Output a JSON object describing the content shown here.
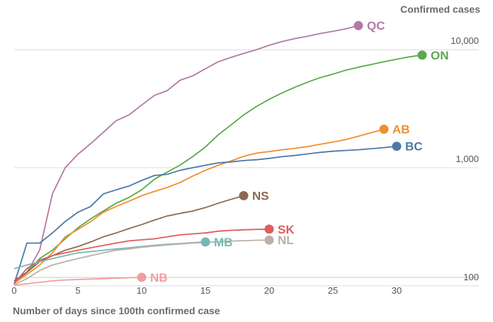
{
  "chart_data": {
    "type": "line",
    "title": "",
    "ylabel": "Confirmed cases",
    "xlabel": "Number of days since 100th confirmed case",
    "y_scale": "log",
    "xlim": [
      0,
      33
    ],
    "ylim": [
      80,
      20000
    ],
    "x_ticks": [
      0,
      5,
      10,
      15,
      20,
      25,
      30
    ],
    "y_ticks": [
      {
        "value": 100,
        "label": "100"
      },
      {
        "value": 1000,
        "label": "1,000"
      },
      {
        "value": 10000,
        "label": "10,000"
      }
    ],
    "grid": "horizontal",
    "series": [
      {
        "name": "QC",
        "color": "#b07aa9",
        "values": [
          [
            0,
            105
          ],
          [
            1,
            130
          ],
          [
            2,
            200
          ],
          [
            3,
            600
          ],
          [
            4,
            1000
          ],
          [
            5,
            1300
          ],
          [
            6,
            1600
          ],
          [
            7,
            2000
          ],
          [
            8,
            2500
          ],
          [
            9,
            2800
          ],
          [
            10,
            3400
          ],
          [
            11,
            4100
          ],
          [
            12,
            4500
          ],
          [
            13,
            5500
          ],
          [
            14,
            6000
          ],
          [
            15,
            6900
          ],
          [
            16,
            7900
          ],
          [
            17,
            8600
          ],
          [
            18,
            9300
          ],
          [
            19,
            10000
          ],
          [
            20,
            10900
          ],
          [
            21,
            11700
          ],
          [
            22,
            12400
          ],
          [
            23,
            13000
          ],
          [
            24,
            13700
          ],
          [
            25,
            14300
          ],
          [
            26,
            15000
          ],
          [
            27,
            16000
          ]
        ]
      },
      {
        "name": "ON",
        "color": "#5aaa4b",
        "values": [
          [
            0,
            110
          ],
          [
            1,
            130
          ],
          [
            2,
            170
          ],
          [
            3,
            200
          ],
          [
            4,
            250
          ],
          [
            5,
            310
          ],
          [
            6,
            370
          ],
          [
            7,
            430
          ],
          [
            8,
            500
          ],
          [
            9,
            560
          ],
          [
            10,
            650
          ],
          [
            11,
            800
          ],
          [
            12,
            920
          ],
          [
            13,
            1050
          ],
          [
            14,
            1240
          ],
          [
            15,
            1500
          ],
          [
            16,
            1900
          ],
          [
            17,
            2300
          ],
          [
            18,
            2800
          ],
          [
            19,
            3300
          ],
          [
            20,
            3800
          ],
          [
            21,
            4300
          ],
          [
            22,
            4800
          ],
          [
            23,
            5300
          ],
          [
            24,
            5800
          ],
          [
            25,
            6200
          ],
          [
            26,
            6700
          ],
          [
            27,
            7100
          ],
          [
            28,
            7500
          ],
          [
            29,
            7900
          ],
          [
            30,
            8300
          ],
          [
            31,
            8700
          ],
          [
            32,
            9000
          ]
        ]
      },
      {
        "name": "AB",
        "color": "#ef8f2f",
        "values": [
          [
            0,
            105
          ],
          [
            1,
            125
          ],
          [
            2,
            150
          ],
          [
            3,
            190
          ],
          [
            4,
            260
          ],
          [
            5,
            300
          ],
          [
            6,
            350
          ],
          [
            7,
            420
          ],
          [
            8,
            470
          ],
          [
            9,
            520
          ],
          [
            10,
            580
          ],
          [
            11,
            630
          ],
          [
            12,
            680
          ],
          [
            13,
            750
          ],
          [
            14,
            850
          ],
          [
            15,
            950
          ],
          [
            16,
            1050
          ],
          [
            17,
            1140
          ],
          [
            18,
            1250
          ],
          [
            19,
            1330
          ],
          [
            20,
            1370
          ],
          [
            21,
            1420
          ],
          [
            22,
            1460
          ],
          [
            23,
            1510
          ],
          [
            24,
            1580
          ],
          [
            25,
            1650
          ],
          [
            26,
            1730
          ],
          [
            27,
            1850
          ],
          [
            28,
            1980
          ],
          [
            29,
            2120
          ]
        ]
      },
      {
        "name": "BC",
        "color": "#4e79a7",
        "values": [
          [
            0,
            103
          ],
          [
            1,
            230
          ],
          [
            2,
            230
          ],
          [
            3,
            280
          ],
          [
            4,
            350
          ],
          [
            5,
            420
          ],
          [
            6,
            470
          ],
          [
            7,
            600
          ],
          [
            8,
            650
          ],
          [
            9,
            700
          ],
          [
            10,
            780
          ],
          [
            11,
            860
          ],
          [
            12,
            880
          ],
          [
            13,
            950
          ],
          [
            14,
            1000
          ],
          [
            15,
            1050
          ],
          [
            16,
            1100
          ],
          [
            17,
            1120
          ],
          [
            18,
            1150
          ],
          [
            19,
            1170
          ],
          [
            20,
            1200
          ],
          [
            21,
            1240
          ],
          [
            22,
            1270
          ],
          [
            23,
            1310
          ],
          [
            24,
            1350
          ],
          [
            25,
            1380
          ],
          [
            26,
            1400
          ],
          [
            27,
            1420
          ],
          [
            28,
            1450
          ],
          [
            29,
            1480
          ],
          [
            30,
            1520
          ]
        ]
      },
      {
        "name": "NS",
        "color": "#8c6a52",
        "values": [
          [
            0,
            110
          ],
          [
            1,
            130
          ],
          [
            2,
            160
          ],
          [
            3,
            180
          ],
          [
            4,
            200
          ],
          [
            5,
            215
          ],
          [
            6,
            235
          ],
          [
            7,
            260
          ],
          [
            8,
            280
          ],
          [
            9,
            305
          ],
          [
            10,
            330
          ],
          [
            11,
            360
          ],
          [
            12,
            390
          ],
          [
            13,
            410
          ],
          [
            14,
            430
          ],
          [
            15,
            460
          ],
          [
            16,
            500
          ],
          [
            17,
            540
          ],
          [
            18,
            580
          ]
        ]
      },
      {
        "name": "SK",
        "color": "#e05c5f",
        "values": [
          [
            0,
            105
          ],
          [
            1,
            140
          ],
          [
            2,
            165
          ],
          [
            3,
            180
          ],
          [
            4,
            190
          ],
          [
            5,
            200
          ],
          [
            6,
            210
          ],
          [
            7,
            220
          ],
          [
            8,
            230
          ],
          [
            9,
            240
          ],
          [
            10,
            245
          ],
          [
            11,
            250
          ],
          [
            12,
            260
          ],
          [
            13,
            270
          ],
          [
            14,
            275
          ],
          [
            15,
            280
          ],
          [
            16,
            290
          ],
          [
            17,
            295
          ],
          [
            18,
            298
          ],
          [
            19,
            300
          ],
          [
            20,
            302
          ]
        ]
      },
      {
        "name": "MB",
        "color": "#77b8b1",
        "values": [
          [
            0,
            140
          ],
          [
            1,
            150
          ],
          [
            2,
            160
          ],
          [
            3,
            170
          ],
          [
            4,
            180
          ],
          [
            5,
            190
          ],
          [
            6,
            195
          ],
          [
            7,
            200
          ],
          [
            8,
            205
          ],
          [
            9,
            210
          ],
          [
            10,
            215
          ],
          [
            11,
            220
          ],
          [
            12,
            225
          ],
          [
            13,
            228
          ],
          [
            14,
            232
          ],
          [
            15,
            235
          ]
        ]
      },
      {
        "name": "NL",
        "color": "#bcb0a7",
        "values": [
          [
            0,
            102
          ],
          [
            1,
            115
          ],
          [
            2,
            135
          ],
          [
            3,
            150
          ],
          [
            4,
            160
          ],
          [
            5,
            170
          ],
          [
            6,
            180
          ],
          [
            7,
            190
          ],
          [
            8,
            200
          ],
          [
            9,
            205
          ],
          [
            10,
            212
          ],
          [
            11,
            217
          ],
          [
            12,
            222
          ],
          [
            13,
            226
          ],
          [
            14,
            230
          ],
          [
            15,
            233
          ],
          [
            16,
            236
          ],
          [
            17,
            239
          ],
          [
            18,
            241
          ],
          [
            19,
            243
          ],
          [
            20,
            244
          ]
        ]
      },
      {
        "name": "NB",
        "color": "#f39da0",
        "values": [
          [
            0,
            101
          ],
          [
            1,
            104
          ],
          [
            2,
            107
          ],
          [
            3,
            110
          ],
          [
            4,
            112
          ],
          [
            5,
            113
          ],
          [
            6,
            114
          ],
          [
            7,
            115
          ],
          [
            8,
            116
          ],
          [
            9,
            117
          ],
          [
            10,
            118
          ]
        ]
      }
    ]
  }
}
